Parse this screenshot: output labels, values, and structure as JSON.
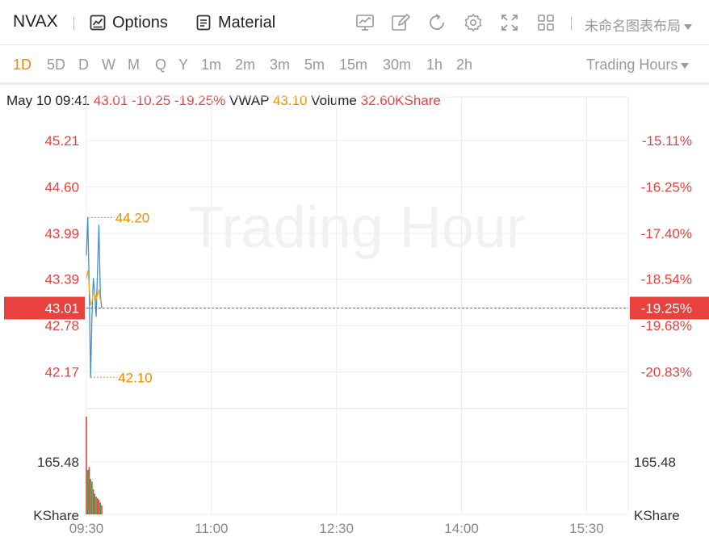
{
  "toolbar": {
    "symbol": "NVAX",
    "options_label": "Options",
    "material_label": "Material",
    "layout_name": "未命名图表布局"
  },
  "periods": {
    "items": [
      "1D",
      "5D",
      "D",
      "W",
      "M",
      "Q",
      "Y",
      "1m",
      "2m",
      "3m",
      "5m",
      "15m",
      "30m",
      "1h",
      "2h"
    ],
    "active": "1D",
    "trading_hours_label": "Trading Hours"
  },
  "info": {
    "datetime": "May 10 09:41",
    "price": "43.01",
    "change": "-10.25",
    "change_pct": "-19.25%",
    "vwap_label": "VWAP",
    "vwap_value": "43.10",
    "volume_label": "Volume",
    "volume_value": "32.60KShare"
  },
  "watermark": "Trading Hour",
  "colors": {
    "up": "#e8413e",
    "down": "#2aa34a",
    "price_line": "#3d8fdc",
    "vwap_line": "#f0b400",
    "accent": "#f08a00",
    "grid": "#ececec"
  },
  "chart_data": {
    "type": "line",
    "title": "",
    "price_axis": {
      "ticks": [
        "45.21",
        "44.60",
        "43.99",
        "43.39",
        "42.78",
        "42.17"
      ],
      "tick_values": [
        45.21,
        44.6,
        43.99,
        43.39,
        42.78,
        42.17
      ],
      "pct_ticks": [
        "-15.11%",
        "-16.25%",
        "-17.40%",
        "-18.54%",
        "-19.68%",
        "-20.83%"
      ],
      "range": [
        41.7,
        45.7
      ],
      "current_price": 43.01,
      "current_price_label": "43.01",
      "current_pct_label": "-19.25%"
    },
    "time_axis": {
      "labels": [
        "09:30",
        "11:00",
        "12:30",
        "14:00",
        "15:30"
      ],
      "minutes_from_open": [
        0,
        90,
        180,
        270,
        360
      ],
      "session_minutes": 390
    },
    "annotations": {
      "high": 44.2,
      "high_label": "44.20",
      "low": 42.1,
      "low_label": "42.10"
    },
    "series": [
      {
        "kind": "price",
        "x_minutes": [
          0,
          1,
          2,
          3,
          4,
          5,
          6,
          7,
          8,
          9,
          10,
          11
        ],
        "values": [
          43.7,
          44.2,
          43.3,
          42.1,
          42.9,
          43.4,
          43.2,
          42.9,
          43.5,
          44.1,
          43.2,
          43.01
        ]
      },
      {
        "kind": "vwap",
        "x_minutes": [
          0,
          1,
          2,
          3,
          4,
          5,
          6,
          7,
          8,
          9,
          10,
          11
        ],
        "values": [
          43.4,
          43.5,
          43.3,
          43.05,
          43.1,
          43.2,
          43.22,
          43.12,
          43.18,
          43.25,
          43.12,
          43.1
        ]
      }
    ],
    "volume": {
      "axis_label": "165.48",
      "unit_label": "KShare",
      "axis_value": 165.48,
      "max": 330,
      "bars": [
        {
          "x_minutes": 0,
          "value": 330,
          "dir": "up"
        },
        {
          "x_minutes": 1,
          "value": 150,
          "dir": "down"
        },
        {
          "x_minutes": 2,
          "value": 160,
          "dir": "up"
        },
        {
          "x_minutes": 3,
          "value": 120,
          "dir": "down"
        },
        {
          "x_minutes": 4,
          "value": 110,
          "dir": "up"
        },
        {
          "x_minutes": 5,
          "value": 85,
          "dir": "down"
        },
        {
          "x_minutes": 6,
          "value": 70,
          "dir": "up"
        },
        {
          "x_minutes": 7,
          "value": 60,
          "dir": "down"
        },
        {
          "x_minutes": 8,
          "value": 55,
          "dir": "up"
        },
        {
          "x_minutes": 9,
          "value": 50,
          "dir": "up"
        },
        {
          "x_minutes": 10,
          "value": 40,
          "dir": "down"
        },
        {
          "x_minutes": 11,
          "value": 30,
          "dir": "up"
        }
      ]
    }
  }
}
